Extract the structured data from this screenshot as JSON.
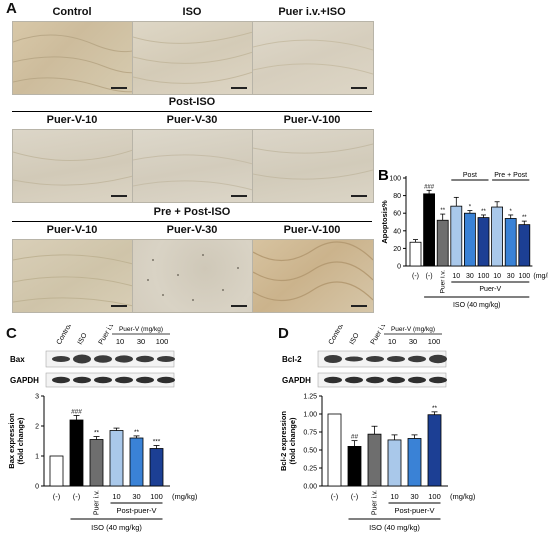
{
  "panelA": {
    "letter": "A",
    "row1_labels": [
      "Control",
      "ISO",
      "Puer i.v.+ISO"
    ],
    "row2_title": "Post-ISO",
    "row2_labels": [
      "Puer-V-10",
      "Puer-V-30",
      "Puer-V-100"
    ],
    "row3_title": "Pre + Post-ISO",
    "row3_labels": [
      "Puer-V-10",
      "Puer-V-30",
      "Puer-V-100"
    ]
  },
  "panelB": {
    "letter": "B",
    "ylabel": "Apoptosis%",
    "yticks": [
      "0",
      "20",
      "40",
      "60",
      "80",
      "100"
    ],
    "xticks": [
      "(-)",
      "(-)",
      "Puer i.v.",
      "10",
      "30",
      "100",
      "10",
      "30",
      "100"
    ],
    "unit": "(mg/kg)",
    "group_post": "Post",
    "group_prepost": "Pre + Post",
    "group_puer": "Puer-V",
    "group_iso": "ISO (40 mg/kg)",
    "annotations": [
      "###",
      "**",
      "*",
      "**",
      "*",
      "**"
    ]
  },
  "panelC": {
    "letter": "C",
    "lane_labels": [
      "Control",
      "ISO",
      "Puer i.v."
    ],
    "dose_header": "Puer-V (mg/kg)",
    "doses": [
      "10",
      "30",
      "100"
    ],
    "blot1": "Bax",
    "blot2": "GAPDH",
    "ylabel": "Bax expression",
    "ylabel2": "(fold change)",
    "yticks": [
      "0",
      "1",
      "2",
      "3"
    ],
    "xticks": [
      "(-)",
      "(-)",
      "Puer i.v.",
      "10",
      "30",
      "100"
    ],
    "unit": "(mg/kg)",
    "group_post": "Post-puer-V",
    "group_iso": "ISO (40 mg/kg)",
    "annotations": [
      "###",
      "**",
      "**",
      "***"
    ]
  },
  "panelD": {
    "letter": "D",
    "lane_labels": [
      "Control",
      "ISO",
      "Puer i.v."
    ],
    "dose_header": "Puer-V (mg/kg)",
    "doses": [
      "10",
      "30",
      "100"
    ],
    "blot1": "Bcl-2",
    "blot2": "GAPDH",
    "ylabel": "Bcl-2 expression",
    "ylabel2": "(fold change)",
    "yticks": [
      "0.00",
      "0.25",
      "0.50",
      "0.75",
      "1.00",
      "1.25"
    ],
    "xticks": [
      "(-)",
      "(-)",
      "Puer i.v.",
      "10",
      "30",
      "100"
    ],
    "unit": "(mg/kg)",
    "group_post": "Post-puer-V",
    "group_iso": "ISO (40 mg/kg)",
    "annotations": [
      "##",
      "**"
    ]
  },
  "chart_data": [
    {
      "type": "bar",
      "panel": "B",
      "categories": [
        "(-)",
        "(-)",
        "Puer i.v.",
        "10",
        "30",
        "100",
        "10",
        "30",
        "100"
      ],
      "values": [
        27,
        82,
        52,
        68,
        60,
        55,
        67,
        54,
        47
      ],
      "errors": [
        3,
        4,
        7,
        10,
        3,
        3,
        6,
        4,
        4
      ],
      "colors": [
        "#ffffff",
        "#000000",
        "#6e6e6e",
        "#a9c8ea",
        "#3a82d6",
        "#1c3f94",
        "#a9c8ea",
        "#3a82d6",
        "#1c3f94"
      ],
      "ylabel": "Apoptosis%",
      "ylim": [
        0,
        100
      ]
    },
    {
      "type": "bar",
      "panel": "C",
      "categories": [
        "(-)",
        "(-)",
        "Puer i.v.",
        "10",
        "30",
        "100"
      ],
      "values": [
        1.0,
        2.2,
        1.55,
        1.85,
        1.6,
        1.25
      ],
      "errors": [
        0,
        0.15,
        0.1,
        0.08,
        0.07,
        0.1
      ],
      "colors": [
        "#ffffff",
        "#000000",
        "#6e6e6e",
        "#a9c8ea",
        "#3a82d6",
        "#1c3f94"
      ],
      "ylabel": "Bax expression (fold change)",
      "ylim": [
        0,
        3
      ]
    },
    {
      "type": "bar",
      "panel": "D",
      "categories": [
        "(-)",
        "(-)",
        "Puer i.v.",
        "10",
        "30",
        "100"
      ],
      "values": [
        1.0,
        0.55,
        0.72,
        0.64,
        0.66,
        0.99
      ],
      "errors": [
        0,
        0.08,
        0.11,
        0.07,
        0.05,
        0.04
      ],
      "colors": [
        "#ffffff",
        "#000000",
        "#6e6e6e",
        "#a9c8ea",
        "#3a82d6",
        "#1c3f94"
      ],
      "ylabel": "Bcl-2 expression (fold change)",
      "ylim": [
        0,
        1.25
      ]
    }
  ]
}
